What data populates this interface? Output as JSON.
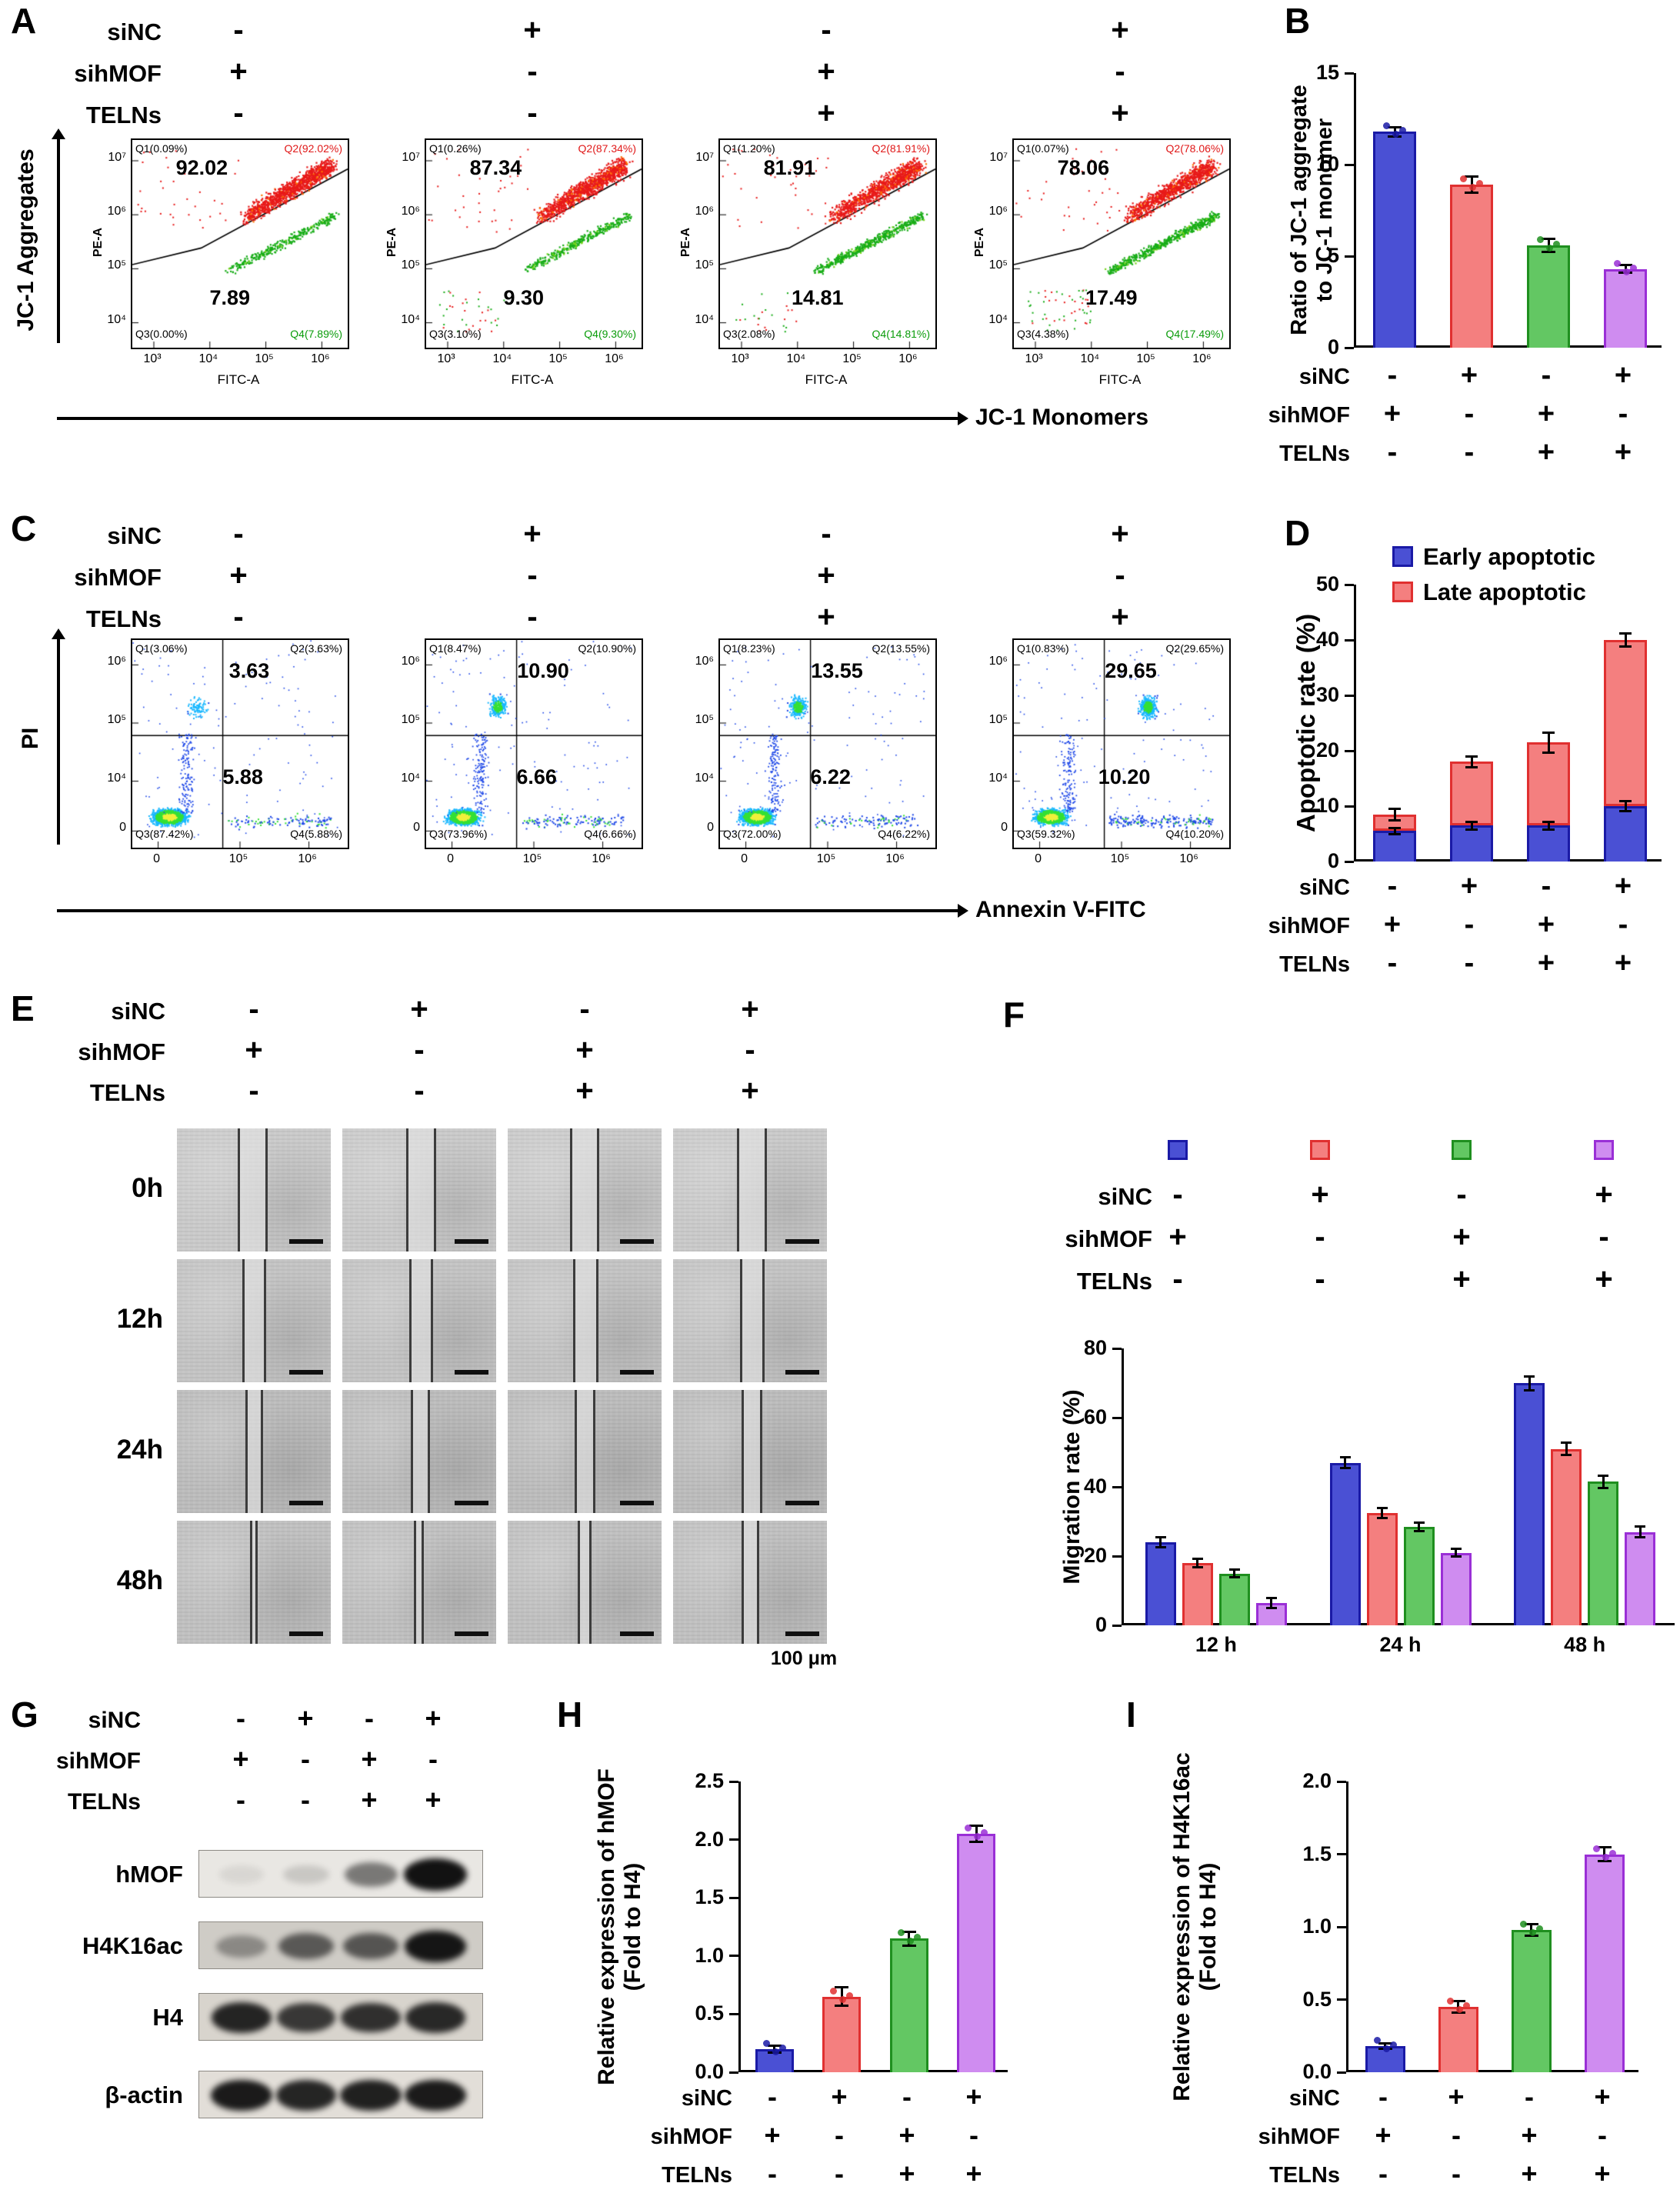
{
  "panel_labels": {
    "A": "A",
    "B": "B",
    "C": "C",
    "D": "D",
    "E": "E",
    "F": "F",
    "G": "G",
    "H": "H",
    "I": "I"
  },
  "conditions": {
    "rows": [
      {
        "name": "siNC",
        "values": [
          "-",
          "+",
          "-",
          "+"
        ]
      },
      {
        "name": "sihMOF",
        "values": [
          "+",
          "-",
          "+",
          "-"
        ]
      },
      {
        "name": "TELNs",
        "values": [
          "-",
          "-",
          "+",
          "+"
        ]
      }
    ]
  },
  "palette": {
    "fills": [
      "#4a50d4",
      "#f47f7f",
      "#63c763",
      "#cf8cf0"
    ],
    "borders": [
      "#1a1aa6",
      "#e03030",
      "#1f8f1f",
      "#9a2fd6"
    ]
  },
  "panelA": {
    "y_axis_title": "JC-1 Aggregates",
    "x_axis_title": "JC-1 Monomers",
    "plots": [
      {
        "y_axis_name": "PE-A",
        "x_axis_name": "FITC-A",
        "y_ticks": [
          "10⁷",
          "10⁶",
          "10⁵",
          "10⁴"
        ],
        "x_ticks": [
          "10³",
          "10⁴",
          "10⁵",
          "10⁶"
        ],
        "q1": "Q1(0.09%)",
        "q2": "Q2(92.02%)",
        "q3": "Q3(0.00%)",
        "q4": "Q4(7.89%)",
        "top_value": "92.02",
        "bottom_value": "7.89",
        "q1_pct": 0.09,
        "q2_pct": 92.02,
        "q3_pct": 0.0,
        "q4_pct": 7.89
      },
      {
        "y_axis_name": "PE-A",
        "x_axis_name": "FITC-A",
        "y_ticks": [
          "10⁷",
          "10⁶",
          "10⁵",
          "10⁴"
        ],
        "x_ticks": [
          "10³",
          "10⁴",
          "10⁵",
          "10⁶"
        ],
        "q1": "Q1(0.26%)",
        "q2": "Q2(87.34%)",
        "q3": "Q3(3.10%)",
        "q4": "Q4(9.30%)",
        "top_value": "87.34",
        "bottom_value": "9.30",
        "q1_pct": 0.26,
        "q2_pct": 87.34,
        "q3_pct": 3.1,
        "q4_pct": 9.3
      },
      {
        "y_axis_name": "PE-A",
        "x_axis_name": "FITC-A",
        "y_ticks": [
          "10⁷",
          "10⁶",
          "10⁵",
          "10⁴"
        ],
        "x_ticks": [
          "10³",
          "10⁴",
          "10⁵",
          "10⁶"
        ],
        "q1": "Q1(1.20%)",
        "q2": "Q2(81.91%)",
        "q3": "Q3(2.08%)",
        "q4": "Q4(14.81%)",
        "top_value": "81.91",
        "bottom_value": "14.81",
        "q1_pct": 1.2,
        "q2_pct": 81.91,
        "q3_pct": 2.08,
        "q4_pct": 14.81
      },
      {
        "y_axis_name": "PE-A",
        "x_axis_name": "FITC-A",
        "y_ticks": [
          "10⁷",
          "10⁶",
          "10⁵",
          "10⁴"
        ],
        "x_ticks": [
          "10³",
          "10⁴",
          "10⁵",
          "10⁶"
        ],
        "q1": "Q1(0.07%)",
        "q2": "Q2(78.06%)",
        "q3": "Q3(4.38%)",
        "q4": "Q4(17.49%)",
        "top_value": "78.06",
        "bottom_value": "17.49",
        "q1_pct": 0.07,
        "q2_pct": 78.06,
        "q3_pct": 4.38,
        "q4_pct": 17.49
      }
    ]
  },
  "panelC": {
    "y_axis_title": "PI",
    "x_axis_title": "Annexin V-FITC",
    "plots": [
      {
        "y_ticks": [
          "10⁶",
          "10⁵",
          "10⁴",
          "0"
        ],
        "x_ticks": [
          "0",
          "10⁵",
          "10⁶"
        ],
        "q1": "Q1(3.06%)",
        "q2": "Q2(3.63%)",
        "q3": "Q3(87.42%)",
        "q4": "Q4(5.88%)",
        "top_value": "3.63",
        "bottom_value": "5.88",
        "q1_pct": 3.06,
        "q2_pct": 3.63,
        "q3_pct": 87.42,
        "q4_pct": 5.88,
        "top_cluster_x": 0.3
      },
      {
        "y_ticks": [
          "10⁶",
          "10⁵",
          "10⁴",
          "0"
        ],
        "x_ticks": [
          "0",
          "10⁵",
          "10⁶"
        ],
        "q1": "Q1(8.47%)",
        "q2": "Q2(10.90%)",
        "q3": "Q3(73.96%)",
        "q4": "Q4(6.66%)",
        "top_value": "10.90",
        "bottom_value": "6.66",
        "q1_pct": 8.47,
        "q2_pct": 10.9,
        "q3_pct": 73.96,
        "q4_pct": 6.66,
        "top_cluster_x": 0.33
      },
      {
        "y_ticks": [
          "10⁶",
          "10⁵",
          "10⁴",
          "0"
        ],
        "x_ticks": [
          "0",
          "10⁵",
          "10⁶"
        ],
        "q1": "Q1(8.23%)",
        "q2": "Q2(13.55%)",
        "q3": "Q3(72.00%)",
        "q4": "Q4(6.22%)",
        "top_value": "13.55",
        "bottom_value": "6.22",
        "q1_pct": 8.23,
        "q2_pct": 13.55,
        "q3_pct": 72.0,
        "q4_pct": 6.22,
        "top_cluster_x": 0.36
      },
      {
        "y_ticks": [
          "10⁶",
          "10⁵",
          "10⁴",
          "0"
        ],
        "x_ticks": [
          "0",
          "10⁵",
          "10⁶"
        ],
        "q1": "Q1(0.83%)",
        "q2": "Q2(29.65%)",
        "q3": "Q3(59.32%)",
        "q4": "Q4(10.20%)",
        "top_value": "29.65",
        "bottom_value": "10.20",
        "q1_pct": 0.83,
        "q2_pct": 29.65,
        "q3_pct": 59.32,
        "q4_pct": 10.2,
        "top_cluster_x": 0.62
      }
    ]
  },
  "panelE": {
    "row_labels": [
      "0h",
      "12h",
      "24h",
      "48h"
    ],
    "scale_label": "100 μm",
    "gaps": [
      [
        [
          40,
          58
        ],
        [
          42,
          60
        ],
        [
          41,
          59
        ],
        [
          42,
          60
        ]
      ],
      [
        [
          43,
          57
        ],
        [
          44,
          58
        ],
        [
          43,
          58
        ],
        [
          44,
          59
        ]
      ],
      [
        [
          45,
          55
        ],
        [
          45,
          56
        ],
        [
          44,
          56
        ],
        [
          45,
          57
        ]
      ],
      [
        [
          48,
          51.5
        ],
        [
          47,
          52.5
        ],
        [
          46,
          53.5
        ],
        [
          45,
          55
        ]
      ]
    ]
  },
  "panelG": {
    "blots": [
      {
        "name": "hMOF",
        "bands": [
          0.07,
          0.14,
          0.5,
          0.97
        ],
        "bg": "#e9e7e3"
      },
      {
        "name": "H4K16ac",
        "bands": [
          0.35,
          0.6,
          0.62,
          0.95
        ],
        "bg": "#cfccc6"
      },
      {
        "name": "H4",
        "bands": [
          0.88,
          0.78,
          0.82,
          0.86
        ],
        "bg": "#d8d4cd"
      },
      {
        "name": "β-actin",
        "bands": [
          0.93,
          0.88,
          0.9,
          0.93
        ],
        "bg": "#e2ded8"
      }
    ]
  },
  "chart_data": [
    {
      "id": "B",
      "type": "bar",
      "ylabel": "Ratio of JC-1 aggregate|to JC-1 monomer",
      "ylim": [
        0,
        15
      ],
      "yticks": [
        0,
        5,
        10,
        15
      ],
      "ytick_labels": [
        "0",
        "5",
        "10",
        "15"
      ],
      "groups": [
        "sihMOF",
        "siNC",
        "sihMOF+TELNs",
        "siNC+TELNs"
      ],
      "values": [
        11.8,
        8.9,
        5.6,
        4.3
      ],
      "errors": [
        0.25,
        0.45,
        0.35,
        0.2
      ]
    },
    {
      "id": "D",
      "type": "stacked-bar",
      "ylabel": "Apoptotic rate (%)",
      "ylim": [
        0,
        50
      ],
      "yticks": [
        0,
        10,
        20,
        30,
        40,
        50
      ],
      "ytick_labels": [
        "0",
        "10",
        "20",
        "30",
        "40",
        "50"
      ],
      "legend": [
        "Early apoptotic",
        "Late apoptotic"
      ],
      "groups": [
        "sihMOF",
        "siNC",
        "sihMOF+TELNs",
        "siNC+TELNs"
      ],
      "early": [
        5.5,
        6.5,
        6.5,
        10.0
      ],
      "late": [
        3.0,
        11.5,
        15.0,
        30.0
      ],
      "early_errors": [
        0.6,
        0.7,
        0.7,
        0.9
      ],
      "total_errors": [
        1.0,
        1.0,
        1.8,
        1.2
      ]
    },
    {
      "id": "F",
      "type": "grouped-bar",
      "ylabel": "Migration rate (%)",
      "ylim": [
        0,
        80
      ],
      "yticks": [
        0,
        20,
        40,
        60,
        80
      ],
      "ytick_labels": [
        "0",
        "20",
        "40",
        "60",
        "80"
      ],
      "categories": [
        "12 h",
        "24 h",
        "48 h"
      ],
      "series": [
        {
          "name": "sihMOF",
          "values": [
            24,
            47,
            70
          ],
          "errors": [
            1.5,
            1.5,
            2.0
          ]
        },
        {
          "name": "siNC",
          "values": [
            18,
            32.5,
            51
          ],
          "errors": [
            1.2,
            1.5,
            1.8
          ]
        },
        {
          "name": "sihMOF+TELNs",
          "values": [
            15,
            28.5,
            41.5
          ],
          "errors": [
            1.2,
            1.2,
            1.8
          ]
        },
        {
          "name": "siNC+TELNs",
          "values": [
            6.5,
            21,
            27
          ],
          "errors": [
            1.5,
            1.2,
            1.5
          ]
        }
      ]
    },
    {
      "id": "H",
      "type": "bar",
      "ylabel": "Relative expression of hMOF|(Fold to H4)",
      "ylim": [
        0,
        2.5
      ],
      "yticks": [
        0,
        0.5,
        1,
        1.5,
        2,
        2.5
      ],
      "ytick_labels": [
        "0.0",
        "0.5",
        "1.0",
        "1.5",
        "2.0",
        "2.5"
      ],
      "groups": [
        "sihMOF",
        "siNC",
        "sihMOF+TELNs",
        "siNC+TELNs"
      ],
      "values": [
        0.2,
        0.65,
        1.15,
        2.05
      ],
      "errors": [
        0.03,
        0.08,
        0.06,
        0.07
      ]
    },
    {
      "id": "I",
      "type": "bar",
      "ylabel": "Relative expression of H4K16ac|(Fold to H4)",
      "ylim": [
        0,
        2
      ],
      "yticks": [
        0,
        0.5,
        1,
        1.5,
        2
      ],
      "ytick_labels": [
        "0.0",
        "0.5",
        "1.0",
        "1.5",
        "2.0"
      ],
      "groups": [
        "sihMOF",
        "siNC",
        "sihMOF+TELNs",
        "siNC+TELNs"
      ],
      "values": [
        0.18,
        0.45,
        0.98,
        1.5
      ],
      "errors": [
        0.02,
        0.04,
        0.04,
        0.05
      ]
    }
  ]
}
